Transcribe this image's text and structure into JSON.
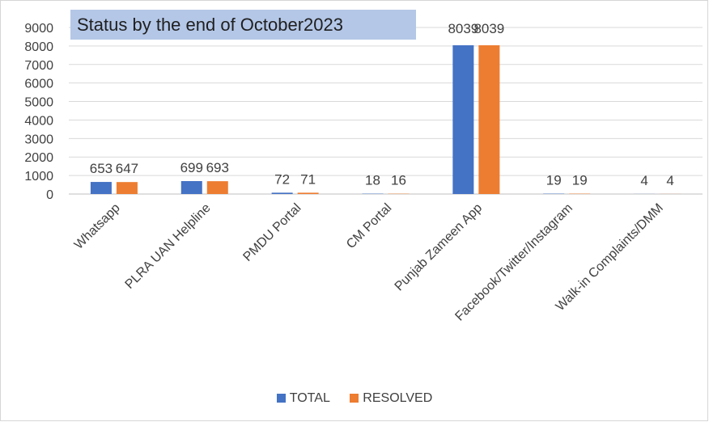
{
  "chart_data": {
    "type": "bar",
    "title": "Status by the end of October2023",
    "categories": [
      "Whatsapp",
      "PLRA UAN Helpline",
      "PMDU Portal",
      "CM Portal",
      "Punjab Zameen App",
      "Facebook/Twitter/Instagram",
      "Walk-in Complaints/DMM"
    ],
    "series": [
      {
        "name": "TOTAL",
        "values": [
          653,
          699,
          72,
          18,
          8039,
          19,
          4
        ],
        "color": "#4472c4"
      },
      {
        "name": "RESOLVED",
        "values": [
          647,
          693,
          71,
          16,
          8039,
          19,
          4
        ],
        "color": "#ed7d31"
      }
    ],
    "y_ticks": [
      0,
      1000,
      2000,
      3000,
      4000,
      5000,
      6000,
      7000,
      8000,
      9000
    ],
    "ylim": [
      0,
      9000
    ],
    "xlabel": "",
    "ylabel": "",
    "grid": true,
    "legend_position": "bottom"
  }
}
